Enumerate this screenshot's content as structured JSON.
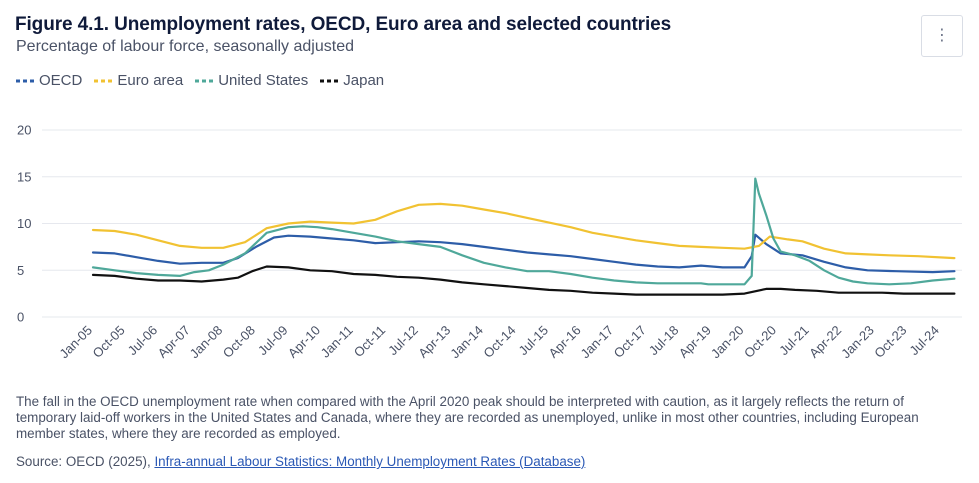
{
  "header": {
    "title": "Figure 4.1. Unemployment rates, OECD, Euro area and selected countries",
    "subtitle": "Percentage of labour force, seasonally adjusted",
    "menu_icon": "vertical-ellipsis-icon",
    "menu_glyph": "⋮"
  },
  "colors": {
    "oecd": "#2d5da8",
    "euro": "#f1c232",
    "us": "#4fa89a",
    "japan": "#111111",
    "grid": "#e6e8ee",
    "axis_text": "#4a5266"
  },
  "footer": {
    "note": "The fall in the OECD unemployment rate when compared with the April 2020 peak should be interpreted with caution, as it largely reflects the return of temporary laid-off workers in the United States and Canada, where they are recorded as unemployed, unlike in most other countries, including European member states, where they are recorded as employed.",
    "source_prefix": "Source: OECD (2025), ",
    "source_link": "Infra-annual Labour Statistics: Monthly Unemployment Rates (Database)"
  },
  "chart_data": {
    "type": "line",
    "title": "Figure 4.1. Unemployment rates, OECD, Euro area and selected countries",
    "ylabel": "Percentage of labour force, seasonally adjusted",
    "ylim": [
      0,
      20
    ],
    "yticks": [
      0,
      5,
      10,
      15,
      20
    ],
    "x_start": "Jan-05",
    "x_end": "Dec-24",
    "x_tick_labels": [
      "Jan-05",
      "Oct-05",
      "Jul-06",
      "Apr-07",
      "Jan-08",
      "Oct-08",
      "Jul-09",
      "Apr-10",
      "Jan-11",
      "Oct-11",
      "Jul-12",
      "Apr-13",
      "Jan-14",
      "Oct-14",
      "Jul-15",
      "Apr-16",
      "Jan-17",
      "Oct-17",
      "Jul-18",
      "Apr-19",
      "Jan-20",
      "Oct-20",
      "Jul-21",
      "Apr-22",
      "Jan-23",
      "Oct-23",
      "Jul-24"
    ],
    "x_tick_step_months": 9,
    "grid": true,
    "legend_position": "top-left",
    "series": [
      {
        "key": "oecd",
        "name": "OECD",
        "points": [
          [
            0,
            6.9
          ],
          [
            6,
            6.8
          ],
          [
            12,
            6.4
          ],
          [
            18,
            6.0
          ],
          [
            24,
            5.7
          ],
          [
            30,
            5.8
          ],
          [
            36,
            5.8
          ],
          [
            40,
            6.3
          ],
          [
            45,
            7.5
          ],
          [
            50,
            8.5
          ],
          [
            54,
            8.7
          ],
          [
            60,
            8.6
          ],
          [
            66,
            8.4
          ],
          [
            72,
            8.2
          ],
          [
            78,
            7.9
          ],
          [
            84,
            8.0
          ],
          [
            90,
            8.1
          ],
          [
            96,
            8.0
          ],
          [
            102,
            7.8
          ],
          [
            108,
            7.5
          ],
          [
            114,
            7.2
          ],
          [
            120,
            6.9
          ],
          [
            126,
            6.7
          ],
          [
            132,
            6.5
          ],
          [
            138,
            6.2
          ],
          [
            144,
            5.9
          ],
          [
            150,
            5.6
          ],
          [
            156,
            5.4
          ],
          [
            162,
            5.3
          ],
          [
            168,
            5.5
          ],
          [
            174,
            5.3
          ],
          [
            180,
            5.3
          ],
          [
            182,
            6.5
          ],
          [
            183,
            8.8
          ],
          [
            186,
            7.8
          ],
          [
            190,
            6.8
          ],
          [
            196,
            6.6
          ],
          [
            202,
            5.9
          ],
          [
            208,
            5.3
          ],
          [
            214,
            5.0
          ],
          [
            222,
            4.9
          ],
          [
            232,
            4.8
          ],
          [
            238,
            4.9
          ]
        ]
      },
      {
        "key": "euro",
        "name": "Euro area",
        "points": [
          [
            0,
            9.3
          ],
          [
            6,
            9.2
          ],
          [
            12,
            8.8
          ],
          [
            18,
            8.2
          ],
          [
            24,
            7.6
          ],
          [
            30,
            7.4
          ],
          [
            36,
            7.4
          ],
          [
            42,
            8.0
          ],
          [
            48,
            9.5
          ],
          [
            54,
            10.0
          ],
          [
            60,
            10.2
          ],
          [
            66,
            10.1
          ],
          [
            72,
            10.0
          ],
          [
            78,
            10.4
          ],
          [
            84,
            11.3
          ],
          [
            90,
            12.0
          ],
          [
            96,
            12.1
          ],
          [
            102,
            11.9
          ],
          [
            108,
            11.5
          ],
          [
            114,
            11.1
          ],
          [
            120,
            10.6
          ],
          [
            126,
            10.1
          ],
          [
            132,
            9.6
          ],
          [
            138,
            9.0
          ],
          [
            144,
            8.6
          ],
          [
            150,
            8.2
          ],
          [
            156,
            7.9
          ],
          [
            162,
            7.6
          ],
          [
            168,
            7.5
          ],
          [
            174,
            7.4
          ],
          [
            180,
            7.3
          ],
          [
            184,
            7.6
          ],
          [
            187,
            8.6
          ],
          [
            192,
            8.3
          ],
          [
            196,
            8.1
          ],
          [
            202,
            7.3
          ],
          [
            208,
            6.8
          ],
          [
            214,
            6.7
          ],
          [
            220,
            6.6
          ],
          [
            228,
            6.5
          ],
          [
            238,
            6.3
          ]
        ]
      },
      {
        "key": "us",
        "name": "United States",
        "points": [
          [
            0,
            5.3
          ],
          [
            6,
            5.0
          ],
          [
            12,
            4.7
          ],
          [
            18,
            4.5
          ],
          [
            24,
            4.4
          ],
          [
            28,
            4.8
          ],
          [
            32,
            5.0
          ],
          [
            36,
            5.6
          ],
          [
            42,
            6.8
          ],
          [
            48,
            9.0
          ],
          [
            54,
            9.6
          ],
          [
            58,
            9.7
          ],
          [
            62,
            9.6
          ],
          [
            66,
            9.4
          ],
          [
            72,
            9.0
          ],
          [
            78,
            8.6
          ],
          [
            84,
            8.1
          ],
          [
            90,
            7.8
          ],
          [
            96,
            7.5
          ],
          [
            102,
            6.6
          ],
          [
            108,
            5.8
          ],
          [
            114,
            5.3
          ],
          [
            120,
            4.9
          ],
          [
            126,
            4.9
          ],
          [
            132,
            4.6
          ],
          [
            138,
            4.2
          ],
          [
            144,
            3.9
          ],
          [
            150,
            3.7
          ],
          [
            156,
            3.6
          ],
          [
            162,
            3.6
          ],
          [
            168,
            3.6
          ],
          [
            170,
            3.5
          ],
          [
            180,
            3.5
          ],
          [
            182,
            4.4
          ],
          [
            183,
            14.8
          ],
          [
            184,
            13.2
          ],
          [
            186,
            10.9
          ],
          [
            188,
            8.4
          ],
          [
            190,
            7.0
          ],
          [
            194,
            6.6
          ],
          [
            198,
            6.0
          ],
          [
            202,
            5.0
          ],
          [
            206,
            4.2
          ],
          [
            210,
            3.8
          ],
          [
            214,
            3.6
          ],
          [
            220,
            3.5
          ],
          [
            226,
            3.6
          ],
          [
            232,
            3.9
          ],
          [
            238,
            4.1
          ]
        ]
      },
      {
        "key": "japan",
        "name": "Japan",
        "points": [
          [
            0,
            4.5
          ],
          [
            6,
            4.4
          ],
          [
            12,
            4.1
          ],
          [
            18,
            3.9
          ],
          [
            24,
            3.9
          ],
          [
            30,
            3.8
          ],
          [
            36,
            4.0
          ],
          [
            40,
            4.2
          ],
          [
            44,
            4.9
          ],
          [
            48,
            5.4
          ],
          [
            54,
            5.3
          ],
          [
            60,
            5.0
          ],
          [
            66,
            4.9
          ],
          [
            72,
            4.6
          ],
          [
            78,
            4.5
          ],
          [
            84,
            4.3
          ],
          [
            90,
            4.2
          ],
          [
            96,
            4.0
          ],
          [
            102,
            3.7
          ],
          [
            108,
            3.5
          ],
          [
            114,
            3.3
          ],
          [
            120,
            3.1
          ],
          [
            126,
            2.9
          ],
          [
            132,
            2.8
          ],
          [
            138,
            2.6
          ],
          [
            144,
            2.5
          ],
          [
            150,
            2.4
          ],
          [
            156,
            2.4
          ],
          [
            162,
            2.4
          ],
          [
            168,
            2.4
          ],
          [
            174,
            2.4
          ],
          [
            180,
            2.5
          ],
          [
            186,
            3.0
          ],
          [
            190,
            3.0
          ],
          [
            194,
            2.9
          ],
          [
            200,
            2.8
          ],
          [
            206,
            2.6
          ],
          [
            212,
            2.6
          ],
          [
            218,
            2.6
          ],
          [
            224,
            2.5
          ],
          [
            230,
            2.5
          ],
          [
            238,
            2.5
          ]
        ]
      }
    ]
  }
}
